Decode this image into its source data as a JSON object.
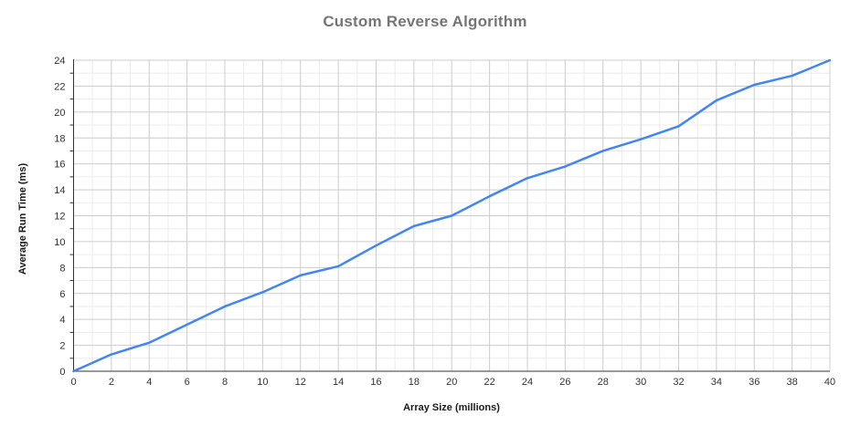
{
  "chart_data": {
    "type": "line",
    "title": "Custom Reverse Algorithm",
    "xlabel": "Array Size (millions)",
    "ylabel": "Average Run Time (ms)",
    "x": [
      0,
      2,
      4,
      6,
      8,
      10,
      12,
      14,
      16,
      18,
      20,
      22,
      24,
      26,
      28,
      30,
      32,
      34,
      36,
      38,
      40
    ],
    "series": [
      {
        "name": "Average Run Time (ms)",
        "values": [
          0,
          1.3,
          2.2,
          3.6,
          5.0,
          6.1,
          7.4,
          8.1,
          9.7,
          11.2,
          12.0,
          13.5,
          14.9,
          15.8,
          17.0,
          17.9,
          18.9,
          20.9,
          22.1,
          22.8,
          24.0
        ]
      }
    ],
    "xlim": [
      0,
      40
    ],
    "ylim": [
      0,
      24
    ],
    "x_ticks": [
      0,
      2,
      4,
      6,
      8,
      10,
      12,
      14,
      16,
      18,
      20,
      22,
      24,
      26,
      28,
      30,
      32,
      34,
      36,
      38,
      40
    ],
    "y_ticks": [
      0,
      2,
      4,
      6,
      8,
      10,
      12,
      14,
      16,
      18,
      20,
      22,
      24
    ],
    "x_minor_step": 1,
    "y_minor_step": 1,
    "grid": "major+minor",
    "legend": "none",
    "colors": {
      "line": "#4285f4",
      "title": "#757575",
      "axis_title": "#1a1a1a",
      "tick_label": "#333333",
      "major_grid": "#cccccc",
      "minor_grid": "#ebebeb",
      "axis": "#333333",
      "background": "#ffffff"
    }
  }
}
